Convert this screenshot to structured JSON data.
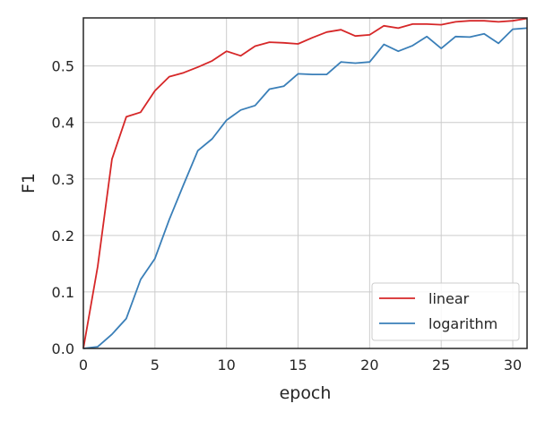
{
  "chart_data": {
    "type": "line",
    "title": "",
    "xlabel": "epoch",
    "ylabel": "F1",
    "xlim": [
      0,
      31
    ],
    "ylim": [
      0,
      0.585
    ],
    "xticks": [
      0,
      5,
      10,
      15,
      20,
      25,
      30
    ],
    "xtick_labels": [
      "0",
      "5",
      "10",
      "15",
      "20",
      "25",
      "30"
    ],
    "yticks": [
      0.0,
      0.1,
      0.2,
      0.3,
      0.4,
      0.5
    ],
    "ytick_labels": [
      "0.0",
      "0.1",
      "0.2",
      "0.3",
      "0.4",
      "0.5"
    ],
    "grid": true,
    "legend_position": "bottom-right",
    "x": [
      0,
      1,
      2,
      3,
      4,
      5,
      6,
      7,
      8,
      9,
      10,
      11,
      12,
      13,
      14,
      15,
      16,
      17,
      18,
      19,
      20,
      21,
      22,
      23,
      24,
      25,
      26,
      27,
      28,
      29,
      30,
      31
    ],
    "series": [
      {
        "name": "linear",
        "color": "#d62728",
        "values": [
          0.0,
          0.145,
          0.335,
          0.41,
          0.418,
          0.456,
          0.481,
          0.488,
          0.498,
          0.509,
          0.526,
          0.518,
          0.535,
          0.542,
          0.541,
          0.539,
          0.55,
          0.56,
          0.564,
          0.553,
          0.555,
          0.571,
          0.567,
          0.574,
          0.574,
          0.573,
          0.578,
          0.58,
          0.58,
          0.578,
          0.58,
          0.584
        ]
      },
      {
        "name": "logarithm",
        "color": "#3a7fb8",
        "values": [
          0.0,
          0.003,
          0.025,
          0.053,
          0.122,
          0.159,
          0.228,
          0.29,
          0.35,
          0.371,
          0.404,
          0.422,
          0.43,
          0.459,
          0.464,
          0.486,
          0.485,
          0.485,
          0.507,
          0.505,
          0.507,
          0.538,
          0.526,
          0.536,
          0.552,
          0.531,
          0.552,
          0.551,
          0.557,
          0.54,
          0.565,
          0.567
        ]
      }
    ]
  }
}
